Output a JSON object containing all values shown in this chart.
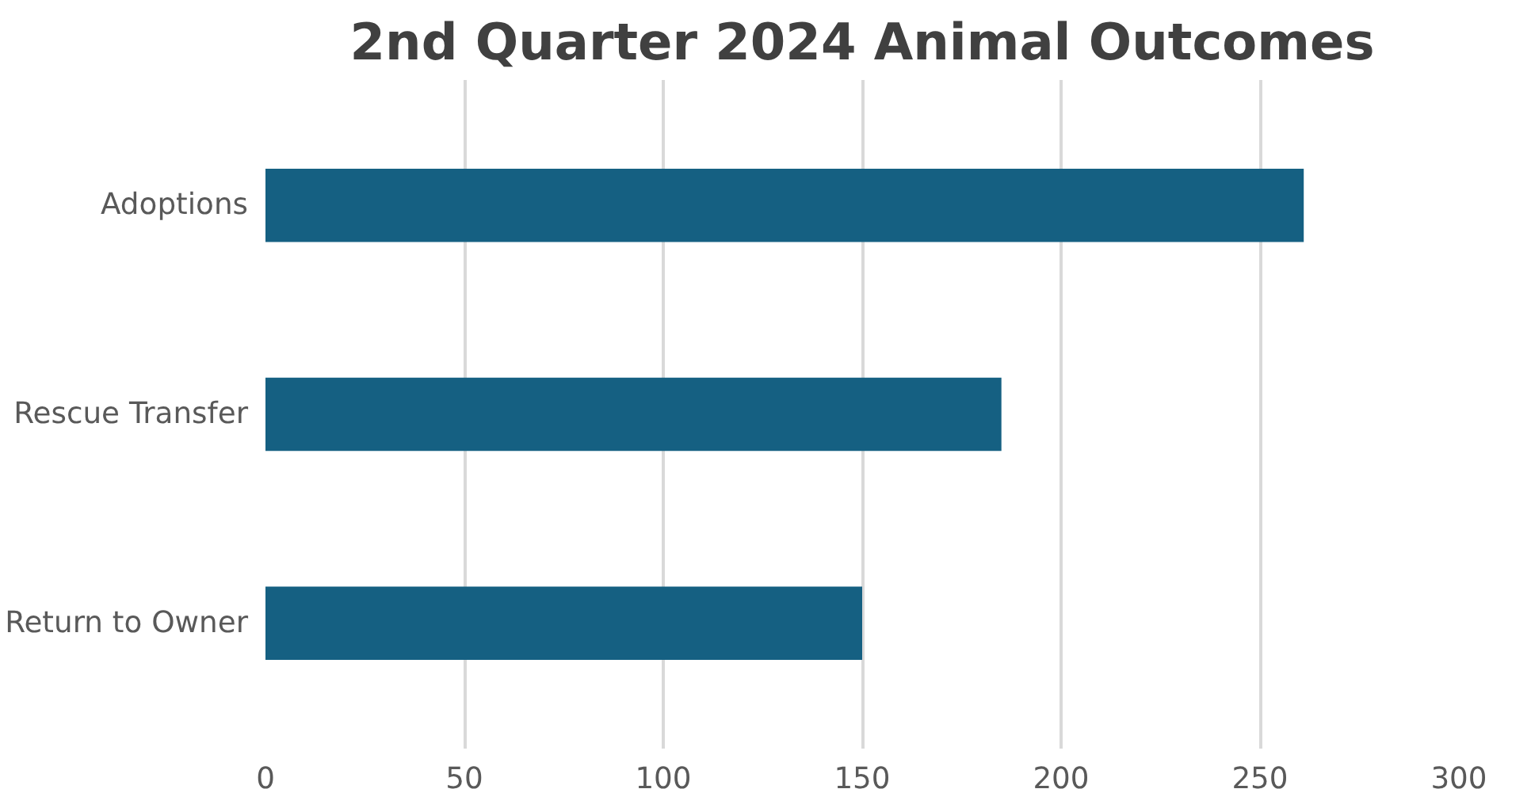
{
  "chart_data": {
    "type": "bar",
    "orientation": "horizontal",
    "title": "2nd Quarter 2024 Animal Outcomes",
    "categories": [
      "Adoptions",
      "Rescue Transfer",
      "Return to Owner"
    ],
    "values": [
      261,
      185,
      150
    ],
    "color": "#156082",
    "xlim": [
      0,
      300
    ],
    "xticks": [
      0,
      50,
      100,
      150,
      200,
      250,
      300
    ],
    "grid": "x"
  }
}
